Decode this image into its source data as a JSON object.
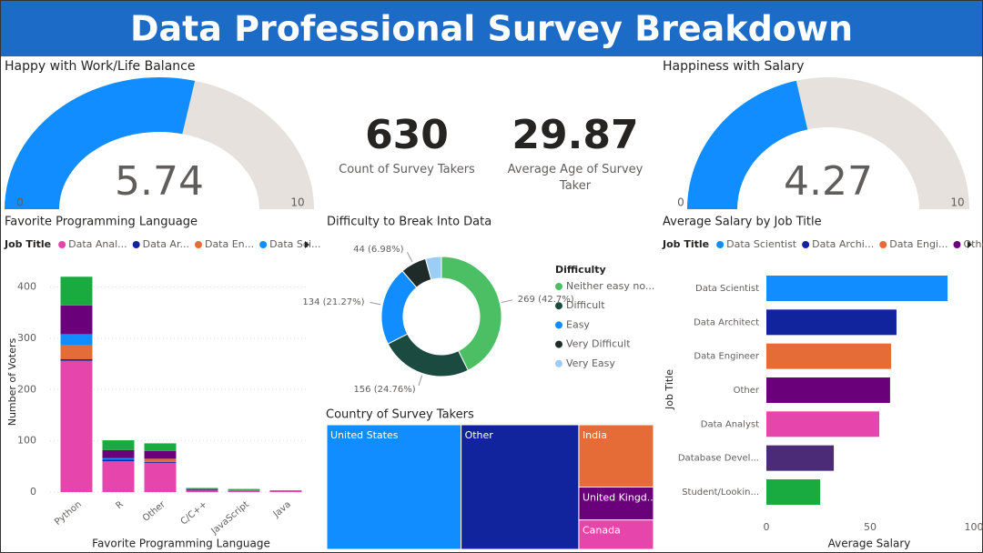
{
  "header": {
    "title": "Data Professional Survey Breakdown"
  },
  "cards": [
    {
      "value": 630,
      "label": "Count of Survey Takers"
    },
    {
      "value": 29.87,
      "label": "Average Age of Survey Taker"
    }
  ],
  "chart_data": [
    {
      "type": "gauge",
      "title": "Happy with Work/Life Balance",
      "value": 5.74,
      "range": [
        0,
        10
      ],
      "color": "#118DFF",
      "track_color": "#E6E1DC"
    },
    {
      "type": "gauge",
      "title": "Happiness with Salary",
      "value": 4.27,
      "range": [
        0,
        10
      ],
      "color": "#118DFF",
      "track_color": "#E6E1DC"
    },
    {
      "type": "bar",
      "stacked": true,
      "title": "Favorite Programming Language",
      "x_label": "Favorite Programming Language",
      "y_label": "Number of Voters",
      "legend_title": "Job Title",
      "categories": [
        "Python",
        "R",
        "Other",
        "C/C++",
        "JavaScript",
        "Java"
      ],
      "series": [
        {
          "name": "Data Anal...",
          "color": "#E645AB",
          "values": [
            256,
            60,
            57,
            3,
            2,
            2
          ]
        },
        {
          "name": "Data Ar...",
          "color": "#12239E",
          "values": [
            3,
            3,
            2,
            0,
            0,
            0
          ]
        },
        {
          "name": "Data En...",
          "color": "#E66C37",
          "values": [
            27,
            0,
            6,
            0,
            1,
            0
          ]
        },
        {
          "name": "Data Sci...",
          "color": "#118DFF",
          "values": [
            22,
            3,
            0,
            0,
            0,
            0
          ]
        },
        {
          "name": null,
          "color": "#6B007B",
          "values": [
            56,
            16,
            15,
            2,
            1,
            1
          ]
        },
        {
          "name": null,
          "color": "#1AAB40",
          "values": [
            56,
            19,
            15,
            3,
            2,
            0
          ]
        }
      ],
      "ylim": [
        0,
        440
      ],
      "yticks": [
        0,
        100,
        200,
        300,
        400
      ],
      "grid": true
    },
    {
      "type": "donut",
      "title": "Difficulty to Break Into Data",
      "legend_title": "Difficulty",
      "categories": [
        "Neither easy no...",
        "Difficult",
        "Easy",
        "Very Difficult",
        "Very Easy"
      ],
      "values": [
        269,
        156,
        134,
        44,
        27
      ],
      "value_labels": [
        "269 (42.7%)",
        "156 (24.76%)",
        "134 (21.27%)",
        "44 (6.98%)",
        null
      ],
      "colors": [
        "#4CBF64",
        "#1B4A40",
        "#118DFF",
        "#1E2B28",
        "#9CCEF5"
      ]
    },
    {
      "type": "treemap",
      "title": "Country of Survey Takers",
      "categories": [
        "United States",
        "Other",
        "India",
        "United Kingd...",
        "Canada"
      ],
      "values": [
        259,
        227,
        72,
        38,
        34
      ],
      "colors": [
        "#118DFF",
        "#12239E",
        "#E66C37",
        "#6B007B",
        "#E645AB"
      ]
    },
    {
      "type": "hbar",
      "title": "Average Salary by Job Title",
      "x_label": "Average Salary",
      "y_label": "Job Title",
      "legend_title": "Job Title",
      "legend": [
        "Data Scientist",
        "Data Archi...",
        "Data Engi...",
        "Other"
      ],
      "categories": [
        "Data Scientist",
        "Data Architect",
        "Data Engineer",
        "Other",
        "Data Analyst",
        "Database Devel...",
        "Student/Lookin..."
      ],
      "values": [
        87.3,
        62.7,
        60.1,
        59.6,
        54.4,
        32.5,
        25.9
      ],
      "colors": [
        "#118DFF",
        "#12239E",
        "#E66C37",
        "#6B007B",
        "#E645AB",
        "#4B2A78",
        "#1AAB40"
      ],
      "xlim": [
        0,
        100
      ],
      "xticks": [
        0,
        50,
        100
      ]
    }
  ]
}
